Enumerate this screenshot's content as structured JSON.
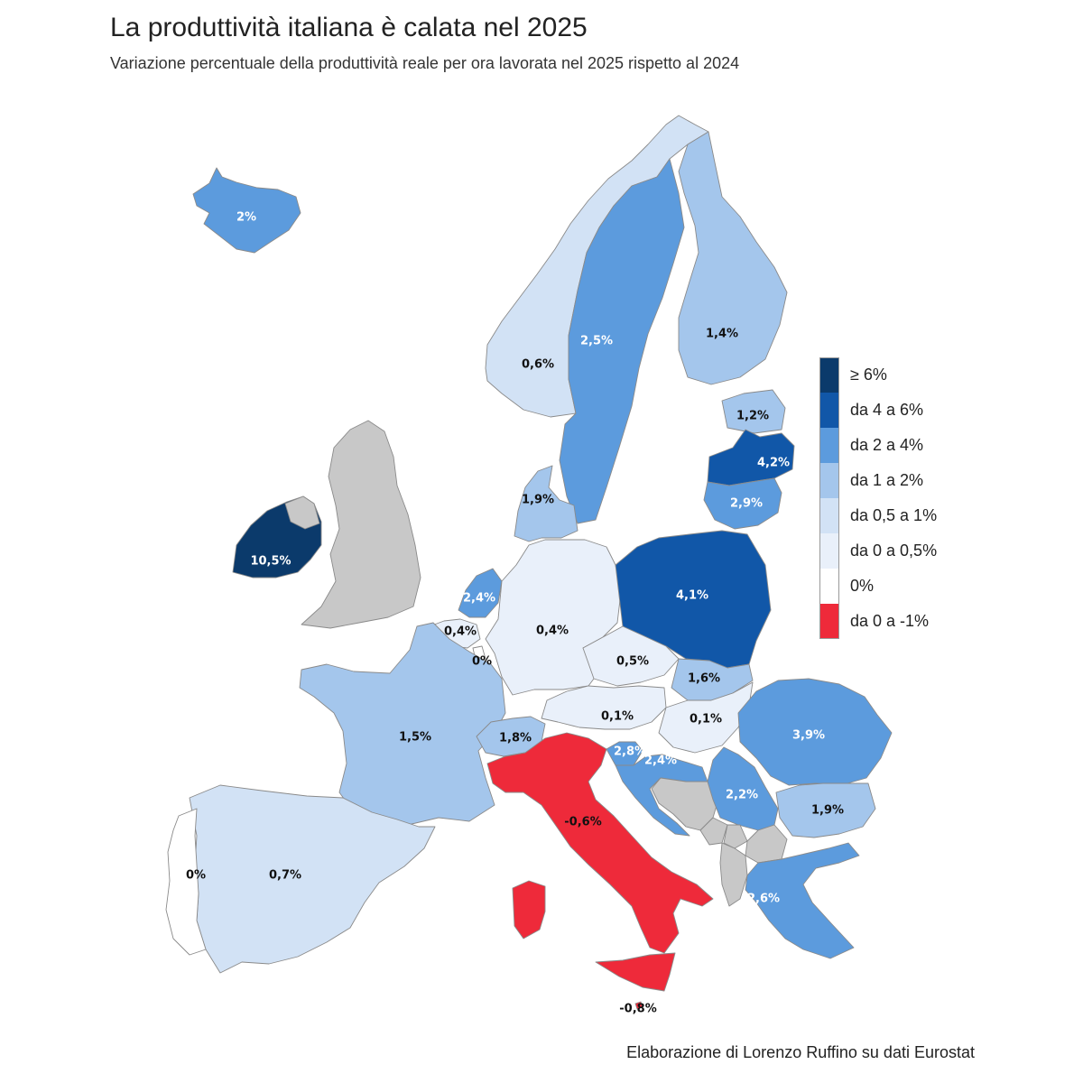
{
  "title": "La produttività italiana è calata nel 2025",
  "subtitle": "Variazione percentuale della produttività reale per ora lavorata nel 2025 rispetto al 2024",
  "source": "Elaborazione di Lorenzo Ruffino su dati Eurostat",
  "colors": {
    "ge6": "#0b3a6b",
    "4to6": "#1157a8",
    "2to4": "#5c9bdd",
    "1to2": "#a4c6ec",
    "05to1": "#d2e2f5",
    "0to05": "#e9f0fa",
    "zero": "#ffffff",
    "neg": "#ee2a3a",
    "nodata": "#c8c8c8"
  },
  "legend": [
    {
      "label": "≥ 6%",
      "class": "ge6"
    },
    {
      "label": "da 4 a 6%",
      "class": "4to6"
    },
    {
      "label": "da 2 a 4%",
      "class": "2to4"
    },
    {
      "label": "da 1 a 2%",
      "class": "1to2"
    },
    {
      "label": "da 0,5 a 1%",
      "class": "05to1"
    },
    {
      "label": "da 0 a 0,5%",
      "class": "0to05"
    },
    {
      "label": "0%",
      "class": "zero"
    },
    {
      "label": "da 0 a -1%",
      "class": "neg"
    }
  ],
  "countries": [
    {
      "name": "Iceland",
      "label": "2%",
      "value": 2.0,
      "class": "2to4"
    },
    {
      "name": "Norway",
      "label": "0,6%",
      "value": 0.6,
      "class": "05to1"
    },
    {
      "name": "Sweden",
      "label": "2,5%",
      "value": 2.5,
      "class": "2to4"
    },
    {
      "name": "Finland",
      "label": "1,4%",
      "value": 1.4,
      "class": "1to2"
    },
    {
      "name": "Estonia",
      "label": "1,2%",
      "value": 1.2,
      "class": "1to2"
    },
    {
      "name": "Latvia",
      "label": "4,2%",
      "value": 4.2,
      "class": "4to6"
    },
    {
      "name": "Lithuania",
      "label": "2,9%",
      "value": 2.9,
      "class": "2to4"
    },
    {
      "name": "Denmark",
      "label": "1,9%",
      "value": 1.9,
      "class": "1to2"
    },
    {
      "name": "Ireland",
      "label": "10,5%",
      "value": 10.5,
      "class": "ge6"
    },
    {
      "name": "Netherlands",
      "label": "2,4%",
      "value": 2.4,
      "class": "2to4"
    },
    {
      "name": "Belgium",
      "label": "0,4%",
      "value": 0.4,
      "class": "0to05"
    },
    {
      "name": "Luxembourg",
      "label": "0%",
      "value": 0,
      "class": "zero"
    },
    {
      "name": "Germany",
      "label": "0,4%",
      "value": 0.4,
      "class": "0to05"
    },
    {
      "name": "Poland",
      "label": "4,1%",
      "value": 4.1,
      "class": "4to6"
    },
    {
      "name": "Czechia",
      "label": "0,5%",
      "value": 0.5,
      "class": "0to05"
    },
    {
      "name": "Slovakia",
      "label": "1,6%",
      "value": 1.6,
      "class": "1to2"
    },
    {
      "name": "Austria",
      "label": "0,1%",
      "value": 0.1,
      "class": "0to05"
    },
    {
      "name": "Hungary",
      "label": "0,1%",
      "value": 0.1,
      "class": "0to05"
    },
    {
      "name": "France",
      "label": "1,5%",
      "value": 1.5,
      "class": "1to2"
    },
    {
      "name": "Switzerland",
      "label": "1,8%",
      "value": 1.8,
      "class": "1to2"
    },
    {
      "name": "Slovenia",
      "label": "2,8%",
      "value": 2.8,
      "class": "2to4"
    },
    {
      "name": "Croatia",
      "label": "2,4%",
      "value": 2.4,
      "class": "2to4"
    },
    {
      "name": "Romania",
      "label": "3,9%",
      "value": 3.9,
      "class": "2to4"
    },
    {
      "name": "Serbia",
      "label": "2,2%",
      "value": 2.2,
      "class": "2to4"
    },
    {
      "name": "Bulgaria",
      "label": "1,9%",
      "value": 1.9,
      "class": "1to2"
    },
    {
      "name": "Greece",
      "label": "2,6%",
      "value": 2.6,
      "class": "2to4"
    },
    {
      "name": "Spain",
      "label": "0,7%",
      "value": 0.7,
      "class": "05to1"
    },
    {
      "name": "Portugal",
      "label": "0%",
      "value": 0,
      "class": "zero"
    },
    {
      "name": "Italy",
      "label": "-0,6%",
      "value": -0.6,
      "class": "neg"
    },
    {
      "name": "Malta",
      "label": "-0,8%",
      "value": -0.8,
      "class": "neg"
    },
    {
      "name": "United Kingdom",
      "label": "",
      "value": null,
      "class": "nodata"
    },
    {
      "name": "Northern Ireland",
      "label": "",
      "value": null,
      "class": "nodata"
    },
    {
      "name": "Bosnia and Herzegovina",
      "label": "",
      "value": null,
      "class": "nodata"
    },
    {
      "name": "Montenegro",
      "label": "",
      "value": null,
      "class": "nodata"
    },
    {
      "name": "Kosovo",
      "label": "",
      "value": null,
      "class": "nodata"
    },
    {
      "name": "North Macedonia",
      "label": "",
      "value": null,
      "class": "nodata"
    },
    {
      "name": "Albania",
      "label": "",
      "value": null,
      "class": "nodata"
    }
  ]
}
